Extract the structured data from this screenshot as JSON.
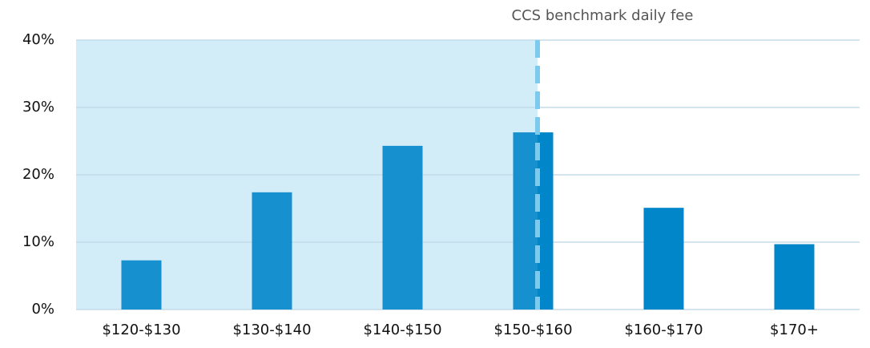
{
  "chart_data": {
    "type": "bar",
    "categories": [
      "$120-$130",
      "$130-$140",
      "$140-$150",
      "$150-$160",
      "$160-$170",
      "$170+"
    ],
    "values": [
      7.3,
      17.4,
      24.3,
      26.3,
      15.1,
      9.7
    ],
    "color": "#0086c9",
    "ylim": [
      0,
      40
    ],
    "yticks": [
      {
        "value": 0,
        "label": "0%"
      },
      {
        "value": 10,
        "label": "10%"
      },
      {
        "value": 20,
        "label": "20%"
      },
      {
        "value": 30,
        "label": "30%"
      },
      {
        "value": 40,
        "label": "40%"
      }
    ],
    "grid": true,
    "annotation": "CCS benchmark daily fee"
  }
}
